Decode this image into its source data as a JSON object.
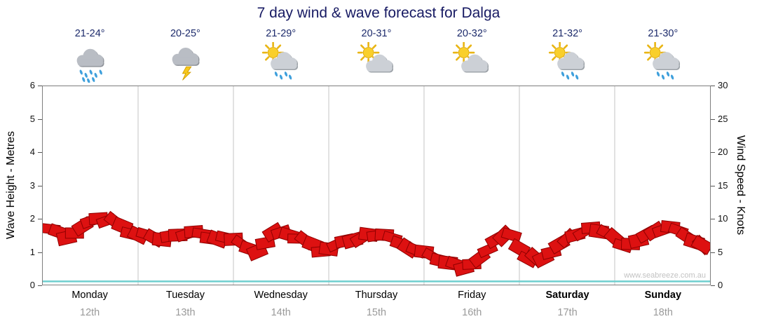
{
  "title": "7 day wind & wave forecast for Dalga",
  "watermark": "www.seabreeze.com.au",
  "axes": {
    "left_label": "Wave Height - Metres",
    "right_label": "Wind Speed - Knots",
    "left_ticks": [
      0,
      1,
      2,
      3,
      4,
      5,
      6
    ],
    "right_ticks": [
      0,
      5,
      10,
      15,
      20,
      25,
      30
    ]
  },
  "days": [
    {
      "name": "Monday",
      "date": "12th",
      "temp": "21-24°",
      "icon": "rain",
      "bold": false
    },
    {
      "name": "Tuesday",
      "date": "13th",
      "temp": "20-25°",
      "icon": "storm",
      "bold": false
    },
    {
      "name": "Wednesday",
      "date": "14th",
      "temp": "21-29°",
      "icon": "sun-cloud-rain",
      "bold": false
    },
    {
      "name": "Thursday",
      "date": "15th",
      "temp": "20-31°",
      "icon": "sun-cloud",
      "bold": false
    },
    {
      "name": "Friday",
      "date": "16th",
      "temp": "20-32°",
      "icon": "sun-cloud",
      "bold": false
    },
    {
      "name": "Saturday",
      "date": "17th",
      "temp": "21-32°",
      "icon": "sun-cloud-rain",
      "bold": true
    },
    {
      "name": "Sunday",
      "date": "18th",
      "temp": "21-30°",
      "icon": "sun-cloud-rain",
      "bold": true
    }
  ],
  "chart_data": {
    "type": "line",
    "title": "7 day wind & wave forecast for Dalga",
    "x_categories": [
      "Monday 12th",
      "Tuesday 13th",
      "Wednesday 14th",
      "Thursday 15th",
      "Friday 16th",
      "Saturday 17th",
      "Sunday 18th"
    ],
    "samples_per_day": 6,
    "left_axis": {
      "label": "Wave Height - Metres",
      "lim": [
        0,
        6
      ],
      "ticks": [
        0,
        1,
        2,
        3,
        4,
        5,
        6
      ]
    },
    "right_axis": {
      "label": "Wind Speed - Knots",
      "lim": [
        0,
        30
      ],
      "ticks": [
        0,
        5,
        10,
        15,
        20,
        25,
        30
      ]
    },
    "grid": "vertical-day-separators",
    "legend": "none",
    "series": [
      {
        "name": "Wind Speed",
        "unit": "knots",
        "axis": "right",
        "color": "#dd1111",
        "style": "wind-flags",
        "values": [
          8.1,
          7.2,
          8.6,
          10.2,
          9.5,
          8.0,
          7.6,
          6.5,
          7.6,
          7.8,
          7.2,
          7.0,
          6.5,
          5.0,
          7.6,
          7.6,
          6.5,
          5.2,
          6.0,
          7.0,
          7.6,
          7.2,
          6.3,
          5.0,
          4.5,
          3.2,
          2.8,
          4.0,
          6.5,
          7.6,
          3.6,
          4.2,
          6.0,
          7.8,
          8.6,
          7.5,
          6.0,
          6.5,
          8.3,
          8.6,
          7.6,
          6.0
        ]
      },
      {
        "name": "Wave Height",
        "unit": "m",
        "axis": "left",
        "color": "#6fcfcf",
        "style": "line",
        "values": [
          0.1,
          0.1,
          0.1,
          0.1,
          0.1,
          0.1,
          0.1,
          0.1,
          0.1,
          0.1,
          0.1,
          0.1,
          0.1,
          0.1,
          0.1,
          0.1,
          0.1,
          0.1,
          0.1,
          0.1,
          0.1,
          0.1,
          0.1,
          0.1,
          0.1,
          0.1,
          0.1,
          0.1,
          0.1,
          0.1,
          0.1,
          0.1,
          0.1,
          0.1,
          0.1,
          0.1,
          0.1,
          0.1,
          0.1,
          0.1,
          0.1,
          0.1
        ]
      }
    ]
  },
  "colors": {
    "title_text": "#171a63",
    "temp_text": "#1c2a6b",
    "wind_flag_fill": "#dd1111",
    "wind_flag_stroke": "#8f0000",
    "wave_line": "#6fcfcf",
    "gridline": "#c4c4c4",
    "date_text": "#9a9a9a",
    "watermark_text": "#c2c2c2"
  }
}
